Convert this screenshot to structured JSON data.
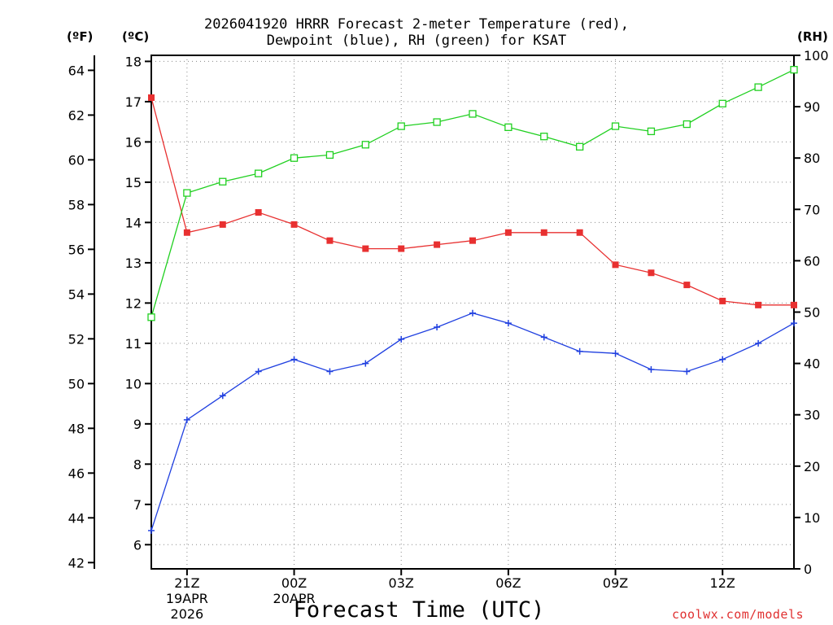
{
  "chart_data": {
    "type": "line",
    "title_line1": "2026041920 HRRR Forecast 2-meter Temperature (red),",
    "title_line2": "Dewpoint (blue), RH (green) for KSAT",
    "xlabel": "Forecast Time (UTC)",
    "left_outer_unit": "(ºF)",
    "left_inner_unit": "(ºC)",
    "right_unit": "(RH)",
    "credit": "coolwx.com/models",
    "x_hours": [
      0,
      1,
      2,
      3,
      4,
      5,
      6,
      7,
      8,
      9,
      10,
      11,
      12,
      13,
      14,
      15,
      16,
      17,
      18
    ],
    "x_range": [
      0,
      18
    ],
    "x_ticks": [
      {
        "hour": 1,
        "label": "21Z",
        "date1": "19APR",
        "date2": "2026"
      },
      {
        "hour": 4,
        "label": "00Z",
        "date1": "20APR",
        "date2": ""
      },
      {
        "hour": 7,
        "label": "03Z",
        "date1": "",
        "date2": ""
      },
      {
        "hour": 10,
        "label": "06Z",
        "date1": "",
        "date2": ""
      },
      {
        "hour": 13,
        "label": "09Z",
        "date1": "",
        "date2": ""
      },
      {
        "hour": 16,
        "label": "12Z",
        "date1": "",
        "date2": ""
      }
    ],
    "celsius_range": [
      5.4,
      18.15
    ],
    "celsius_ticks": [
      6,
      7,
      8,
      9,
      10,
      11,
      12,
      13,
      14,
      15,
      16,
      17,
      18
    ],
    "fahrenheit_ticks": [
      42,
      44,
      46,
      48,
      50,
      52,
      54,
      56,
      58,
      60,
      62,
      64
    ],
    "rh_range": [
      0,
      100
    ],
    "rh_ticks": [
      0,
      10,
      20,
      30,
      40,
      50,
      60,
      70,
      80,
      90,
      100
    ],
    "series": [
      {
        "name": "Temperature",
        "unit": "C",
        "color": "#e83030",
        "marker": "filled-square",
        "values": [
          17.1,
          13.75,
          13.95,
          14.25,
          13.95,
          13.55,
          13.35,
          13.35,
          13.45,
          13.55,
          13.75,
          13.75,
          13.75,
          12.95,
          12.75,
          12.45,
          12.05,
          11.95,
          11.95
        ]
      },
      {
        "name": "Dewpoint",
        "unit": "C",
        "color": "#2040e0",
        "marker": "plus",
        "values": [
          6.35,
          9.1,
          9.7,
          10.3,
          10.6,
          10.3,
          10.5,
          11.1,
          11.4,
          11.75,
          11.5,
          11.15,
          10.8,
          10.75,
          10.35,
          10.3,
          10.6,
          11.0,
          11.5
        ]
      },
      {
        "name": "RH",
        "unit": "%",
        "color": "#20d020",
        "marker": "open-square",
        "values": [
          49,
          73.2,
          75.4,
          77,
          80,
          80.6,
          82.6,
          86.2,
          87,
          88.6,
          86,
          84.2,
          82.2,
          86.2,
          85.2,
          86.6,
          90.6,
          93.8,
          97.2
        ]
      }
    ]
  }
}
